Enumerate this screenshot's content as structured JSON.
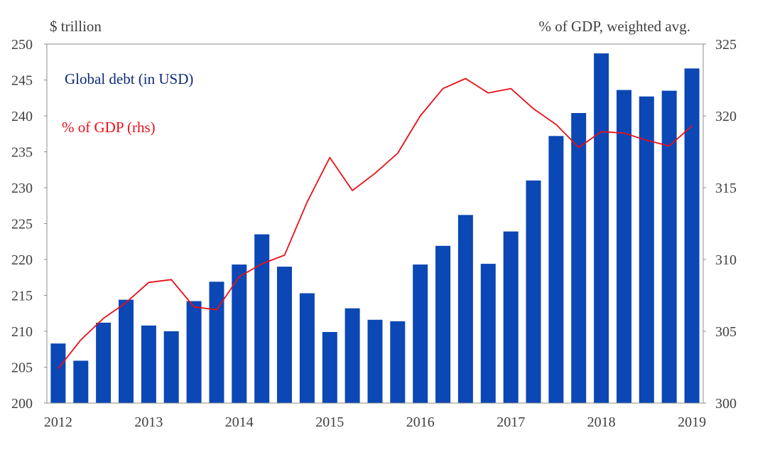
{
  "chart_data": {
    "type": "bar",
    "left_axis_label": "$ trillion",
    "right_axis_label": "% of GDP, weighted avg.",
    "x_tick_labels": [
      "2012",
      "2013",
      "2014",
      "2015",
      "2016",
      "2017",
      "2018",
      "2019"
    ],
    "y_left": {
      "min": 200,
      "max": 250,
      "ticks": [
        "200",
        "205",
        "210",
        "215",
        "220",
        "225",
        "230",
        "235",
        "240",
        "245",
        "250"
      ]
    },
    "y_right": {
      "min": 300,
      "max": 325,
      "ticks": [
        "300",
        "305",
        "310",
        "315",
        "320",
        "325"
      ]
    },
    "grid": false,
    "series": [
      {
        "name": "Global debt (in USD)",
        "type": "bar",
        "axis": "left",
        "color": "#0b47b5",
        "label_color": "#0b2a7a",
        "values": [
          208.3,
          205.9,
          211.2,
          214.4,
          210.8,
          210.0,
          214.2,
          216.9,
          219.3,
          223.5,
          219.0,
          215.3,
          209.9,
          213.2,
          211.6,
          211.4,
          219.3,
          221.9,
          226.2,
          219.4,
          223.9,
          231.0,
          237.2,
          240.4,
          248.7,
          243.6,
          242.7,
          243.5,
          246.6
        ]
      },
      {
        "name": "% of GDP (rhs)",
        "type": "line",
        "axis": "right",
        "color": "#e8101a",
        "label_color": "#e8101a",
        "values": [
          302.4,
          304.4,
          305.9,
          307.0,
          308.4,
          308.6,
          306.7,
          306.5,
          308.8,
          309.7,
          310.3,
          314.0,
          317.1,
          314.8,
          316.0,
          317.4,
          320.0,
          321.9,
          322.6,
          321.6,
          321.9,
          320.5,
          319.4,
          317.8,
          318.9,
          318.8,
          318.3,
          317.9,
          319.3
        ]
      }
    ]
  }
}
